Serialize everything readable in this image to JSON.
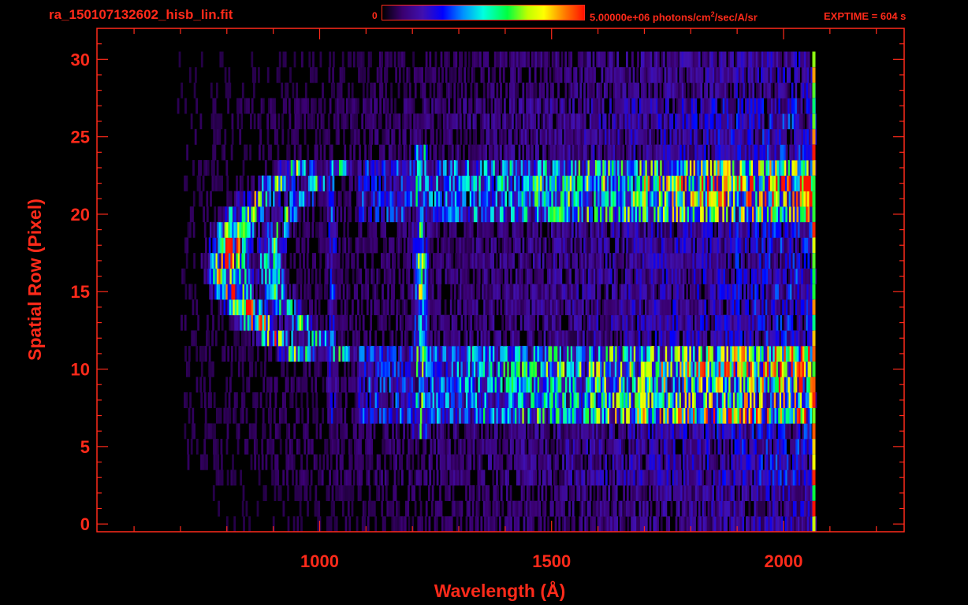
{
  "header": {
    "file_title": "ra_150107132602_hisb_lin.fit",
    "colorbar_min": "0",
    "colorbar_max_value": "5.00000e+06 photons/cm",
    "colorbar_max_exp": "2",
    "colorbar_max_rest": "/sec/A/sr",
    "exptime": "EXPTIME = 604 s"
  },
  "colors": {
    "axis": "#ff2a1a",
    "background": "#000000"
  },
  "chart_data": {
    "type": "heatmap",
    "title": "ra_150107132602_hisb_lin.fit",
    "xlabel": "Wavelength (Å)",
    "ylabel": "Spatial Row (Pixel)",
    "xlim": [
      520,
      2260
    ],
    "ylim": [
      -0.5,
      32
    ],
    "xticks": [
      1000,
      1500,
      2000
    ],
    "yticks": [
      0,
      5,
      10,
      15,
      20,
      25,
      30
    ],
    "colorscale": [
      "#000000",
      "#3a0070",
      "#4010b0",
      "#0000ff",
      "#0090ff",
      "#00ffe0",
      "#00ff40",
      "#c0ff00",
      "#ffff00",
      "#ff8000",
      "#ff1000"
    ],
    "colorbar_range": [
      0,
      5000000
    ],
    "data_extent": {
      "wavelength": [
        700,
        2070
      ],
      "rows": [
        0,
        30
      ]
    },
    "features": [
      {
        "label": "",
        "type": "continuum",
        "rows": [
          6.5,
          11
        ],
        "wavelength": [
          1120,
          2060
        ],
        "peak_at_wavelength": 2050
      },
      {
        "label": "",
        "type": "continuum",
        "rows": [
          19.5,
          23
        ],
        "wavelength": [
          1120,
          2060
        ],
        "peak_at_wavelength": 2050
      },
      {
        "label": "",
        "type": "emission_line",
        "wavelength": 1216,
        "rows": [
          6,
          24
        ]
      },
      {
        "label": "",
        "type": "arc",
        "wavelength": [
          770,
          960
        ],
        "rows": [
          11,
          23
        ]
      }
    ]
  }
}
